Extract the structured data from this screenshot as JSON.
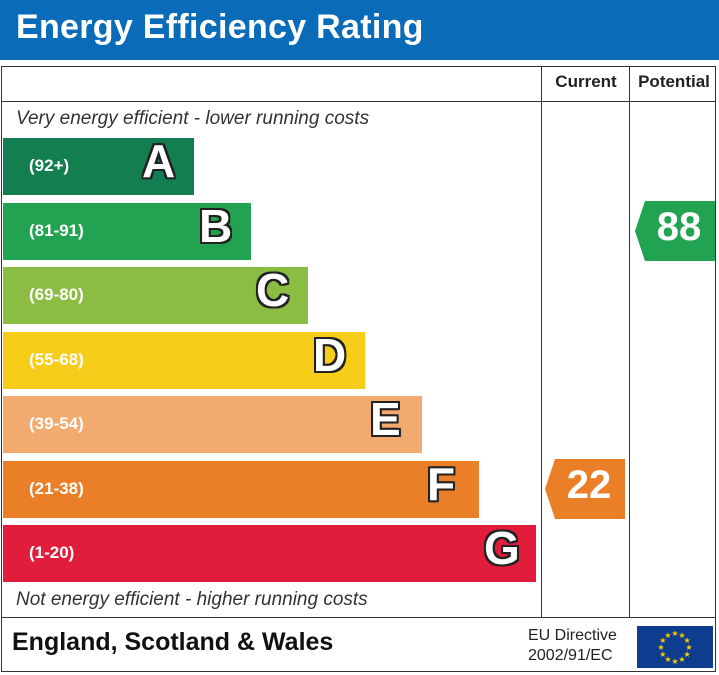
{
  "title": "Energy Efficiency Rating",
  "columns": {
    "current": "Current",
    "potential": "Potential"
  },
  "captions": {
    "top": "Very energy efficient - lower running costs",
    "bottom": "Not energy efficient - higher running costs"
  },
  "footer": {
    "country": "England, Scotland & Wales",
    "directive_line1": "EU Directive",
    "directive_line2": "2002/91/EC",
    "flag_icon": "eu-flag-icon"
  },
  "chart_data": {
    "type": "table",
    "bands": [
      {
        "letter": "A",
        "range": "(92+)",
        "color": "#137e4f"
      },
      {
        "letter": "B",
        "range": "(81-91)",
        "color": "#22a352"
      },
      {
        "letter": "C",
        "range": "(69-80)",
        "color": "#8cbd43"
      },
      {
        "letter": "D",
        "range": "(55-68)",
        "color": "#f6cd18"
      },
      {
        "letter": "E",
        "range": "(39-54)",
        "color": "#f3aa6e"
      },
      {
        "letter": "F",
        "range": "(21-38)",
        "color": "#eb7f27"
      },
      {
        "letter": "G",
        "range": "(1-20)",
        "color": "#e21d3b"
      }
    ],
    "current": {
      "value": "22",
      "band": "F",
      "color": "#eb7f27"
    },
    "potential": {
      "value": "88",
      "band": "B",
      "color": "#22a352"
    }
  }
}
